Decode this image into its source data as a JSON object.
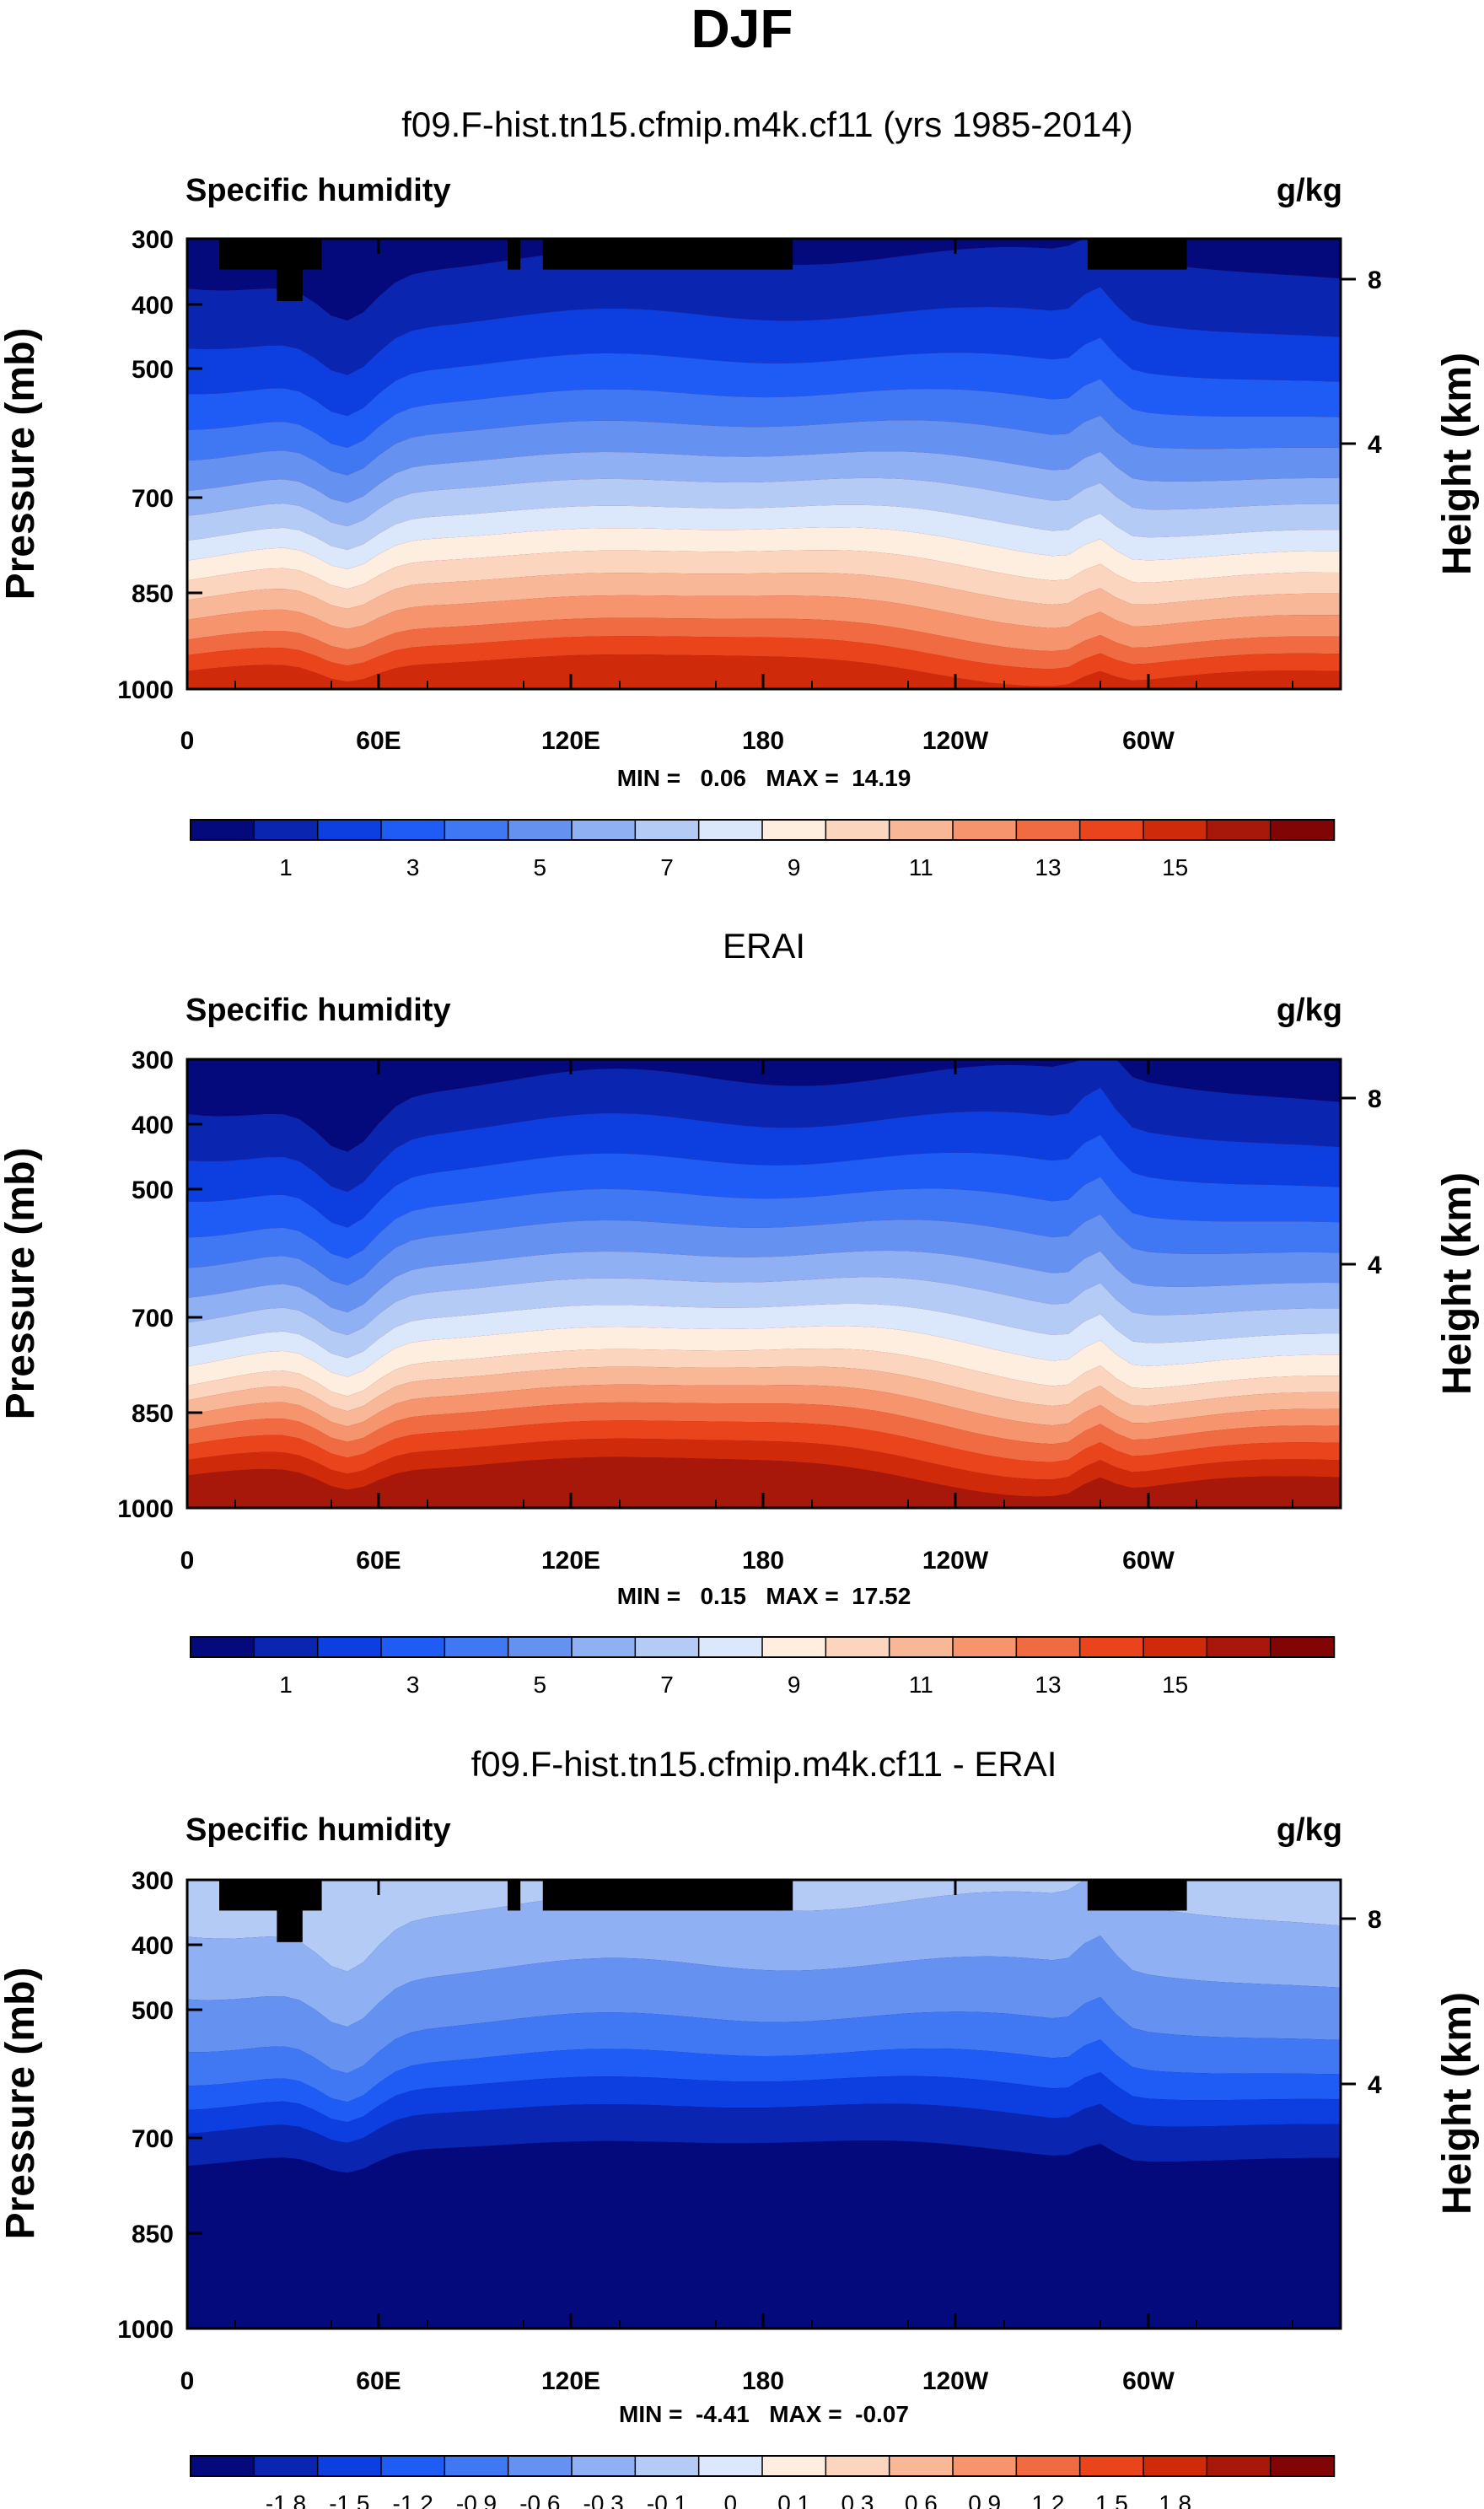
{
  "figure": {
    "season": "DJF",
    "colors": {
      "abs": [
        "#04097b",
        "#0a26b1",
        "#0d3ee0",
        "#1f5bf5",
        "#3f78f2",
        "#6592f0",
        "#8fb0f3",
        "#b4cbf6",
        "#dbe7fb",
        "#fdeee0",
        "#fbd5be",
        "#f8b797",
        "#f5946d",
        "#f06b42",
        "#e9441c",
        "#cf2b0b",
        "#a7180b",
        "#820506"
      ],
      "diff": [
        "#04097b",
        "#0a26b1",
        "#0d3ee0",
        "#1f5bf5",
        "#3f78f2",
        "#6592f0",
        "#8fb0f3",
        "#b4cbf6",
        "#dbe7fb",
        "#fdeee0",
        "#fbd5be",
        "#f8b797",
        "#f5946d",
        "#f06b42",
        "#e9441c",
        "#cf2b0b",
        "#a7180b",
        "#820506"
      ],
      "land": "#000000"
    }
  },
  "panels": [
    {
      "title": "f09.F-hist.tn15.cfmip.m4k.cf11 (yrs 1985-2014)",
      "variable": "Specific humidity",
      "units": "g/kg",
      "ylabel": "Pressure (mb)",
      "y2label": "Height (km)",
      "pressure_ticks": [
        "300",
        "400",
        "500",
        "700",
        "850",
        "1000"
      ],
      "height_ticks": [
        "8",
        "4"
      ],
      "lon_ticks": [
        "0",
        "60E",
        "120E",
        "180",
        "120W",
        "60W"
      ],
      "stats": "MIN =   0.06   MAX =  14.19",
      "colorbar_labels": [
        "1",
        "3",
        "5",
        "7",
        "9",
        "11",
        "13",
        "15"
      ],
      "colormap": "abs",
      "has_land_mask": true
    },
    {
      "title": "ERAI",
      "variable": "Specific humidity",
      "units": "g/kg",
      "ylabel": "Pressure (mb)",
      "y2label": "Height (km)",
      "pressure_ticks": [
        "300",
        "400",
        "500",
        "700",
        "850",
        "1000"
      ],
      "height_ticks": [
        "8",
        "4"
      ],
      "lon_ticks": [
        "0",
        "60E",
        "120E",
        "180",
        "120W",
        "60W"
      ],
      "stats": "MIN =   0.15   MAX =  17.52",
      "colorbar_labels": [
        "1",
        "3",
        "5",
        "7",
        "9",
        "11",
        "13",
        "15"
      ],
      "colormap": "abs",
      "has_land_mask": false
    },
    {
      "title": "f09.F-hist.tn15.cfmip.m4k.cf11 - ERAI",
      "variable": "Specific humidity",
      "units": "g/kg",
      "ylabel": "Pressure (mb)",
      "y2label": "Height (km)",
      "pressure_ticks": [
        "300",
        "400",
        "500",
        "700",
        "850",
        "1000"
      ],
      "height_ticks": [
        "8",
        "4"
      ],
      "lon_ticks": [
        "0",
        "60E",
        "120E",
        "180",
        "120W",
        "60W"
      ],
      "stats": "MIN =  -4.41   MAX =  -0.07",
      "colorbar_labels": [
        "-1.8",
        "-1.5",
        "-1.2",
        "-0.9",
        "-0.6",
        "-0.3",
        "-0.1",
        "0",
        "0.1",
        "0.3",
        "0.6",
        "0.9",
        "1.2",
        "1.5",
        "1.8"
      ],
      "colormap": "diff",
      "has_land_mask": true
    }
  ],
  "chart_data": [
    {
      "type": "heatmap",
      "title": "f09.F-hist.tn15.cfmip.m4k.cf11 (yrs 1985-2014)",
      "subtitle": "Specific humidity",
      "units": "g/kg",
      "xlabel": "Longitude",
      "ylabel": "Pressure (mb)",
      "y2label": "Height (km)",
      "x_range": [
        0,
        360
      ],
      "y_range_mb": [
        1000,
        300
      ],
      "levels": [
        1,
        2,
        3,
        4,
        5,
        6,
        7,
        8,
        9,
        10,
        11,
        12,
        13,
        14,
        15,
        16,
        17
      ],
      "min": 0.06,
      "max": 14.19,
      "surface_pressure_profile_mb": [
        [
          0,
          480
        ],
        [
          20,
          470
        ],
        [
          36,
          510
        ],
        [
          48,
          540
        ],
        [
          60,
          510
        ],
        [
          90,
          470
        ],
        [
          120,
          455
        ],
        [
          150,
          460
        ],
        [
          180,
          500
        ],
        [
          200,
          540
        ],
        [
          240,
          580
        ],
        [
          260,
          560
        ],
        [
          280,
          480
        ],
        [
          300,
          430
        ],
        [
          320,
          460
        ],
        [
          340,
          510
        ],
        [
          360,
          490
        ]
      ],
      "land_mask_lon_ranges": [
        [
          10,
          42,
          "925-1000"
        ],
        [
          28,
          36,
          "850-925"
        ],
        [
          100,
          104,
          "925-1000"
        ],
        [
          111,
          189,
          "925-1000"
        ],
        [
          281,
          312,
          "925-1000"
        ]
      ]
    },
    {
      "type": "heatmap",
      "title": "ERAI",
      "subtitle": "Specific humidity",
      "units": "g/kg",
      "xlabel": "Longitude",
      "ylabel": "Pressure (mb)",
      "y2label": "Height (km)",
      "x_range": [
        0,
        360
      ],
      "y_range_mb": [
        1000,
        300
      ],
      "levels": [
        1,
        2,
        3,
        4,
        5,
        6,
        7,
        8,
        9,
        10,
        11,
        12,
        13,
        14,
        15,
        16,
        17
      ],
      "min": 0.15,
      "max": 17.52
    },
    {
      "type": "heatmap",
      "title": "f09.F-hist.tn15.cfmip.m4k.cf11 - ERAI",
      "subtitle": "Specific humidity",
      "units": "g/kg",
      "xlabel": "Longitude",
      "ylabel": "Pressure (mb)",
      "y2label": "Height (km)",
      "x_range": [
        0,
        360
      ],
      "y_range_mb": [
        1000,
        300
      ],
      "levels": [
        -1.8,
        -1.5,
        -1.2,
        -0.9,
        -0.6,
        -0.3,
        -0.1,
        0,
        0.1,
        0.3,
        0.6,
        0.9,
        1.2,
        1.5,
        1.8
      ],
      "min": -4.41,
      "max": -0.07,
      "land_mask_lon_ranges": [
        [
          10,
          42,
          "925-1000"
        ],
        [
          28,
          36,
          "850-925"
        ],
        [
          100,
          104,
          "925-1000"
        ],
        [
          111,
          189,
          "925-1000"
        ],
        [
          281,
          312,
          "925-1000"
        ]
      ]
    }
  ]
}
